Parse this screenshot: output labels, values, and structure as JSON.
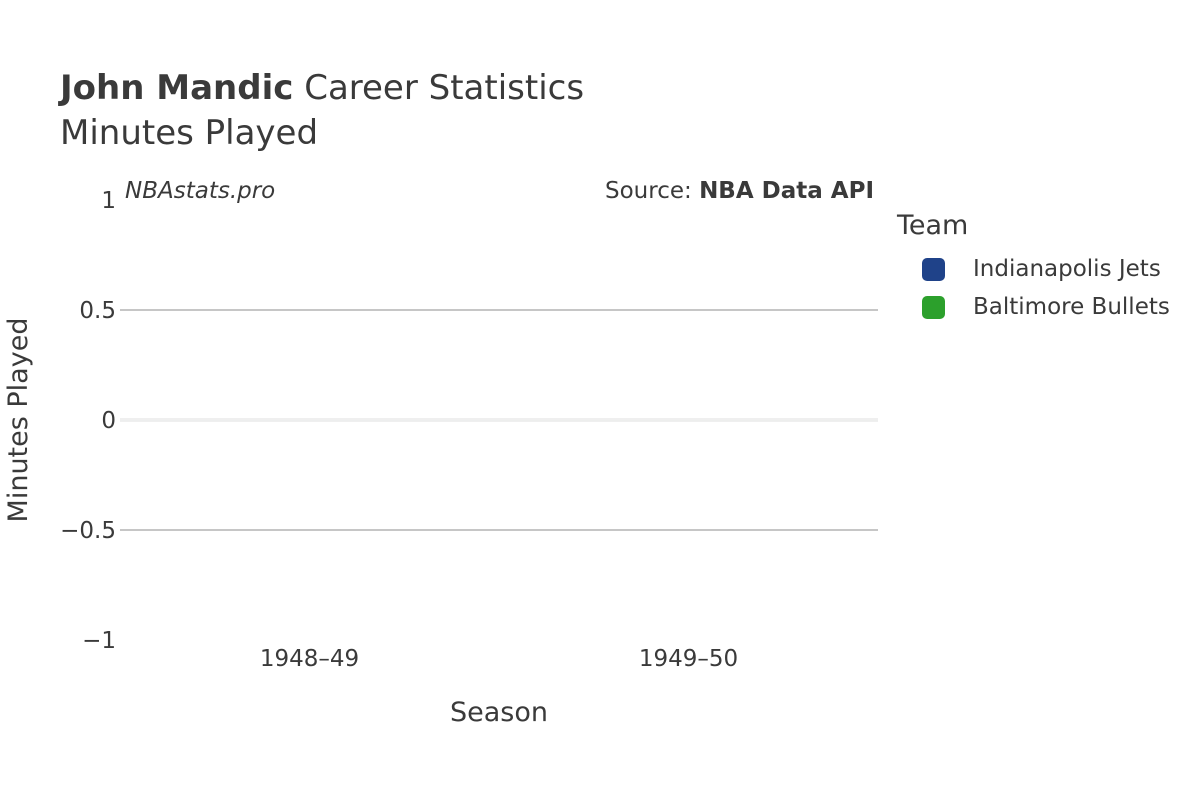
{
  "header": {
    "player_name": "John Mandic",
    "title_rest": " Career Statistics",
    "subtitle": "Minutes Played"
  },
  "watermark": "NBAstats.pro",
  "source": {
    "prefix": "Source: ",
    "name": "NBA Data API"
  },
  "legend": {
    "title": "Team",
    "items": [
      {
        "label": "Indianapolis Jets",
        "color": "#1f4289"
      },
      {
        "label": "Baltimore Bullets",
        "color": "#2ca02c"
      }
    ]
  },
  "chart_data": {
    "type": "bar",
    "categories": [
      "1948–49",
      "1949–50"
    ],
    "series": [
      {
        "name": "Indianapolis Jets",
        "values": [
          0,
          null
        ]
      },
      {
        "name": "Baltimore Bullets",
        "values": [
          null,
          0
        ]
      }
    ],
    "xlabel": "Season",
    "ylabel": "Minutes Played",
    "ylim": [
      -1,
      1
    ],
    "yticks": [
      1,
      0.5,
      0,
      -0.5,
      -1
    ],
    "ytick_labels": [
      "1",
      "0.5",
      "0",
      "−0.5",
      "−1"
    ],
    "grid": true
  }
}
